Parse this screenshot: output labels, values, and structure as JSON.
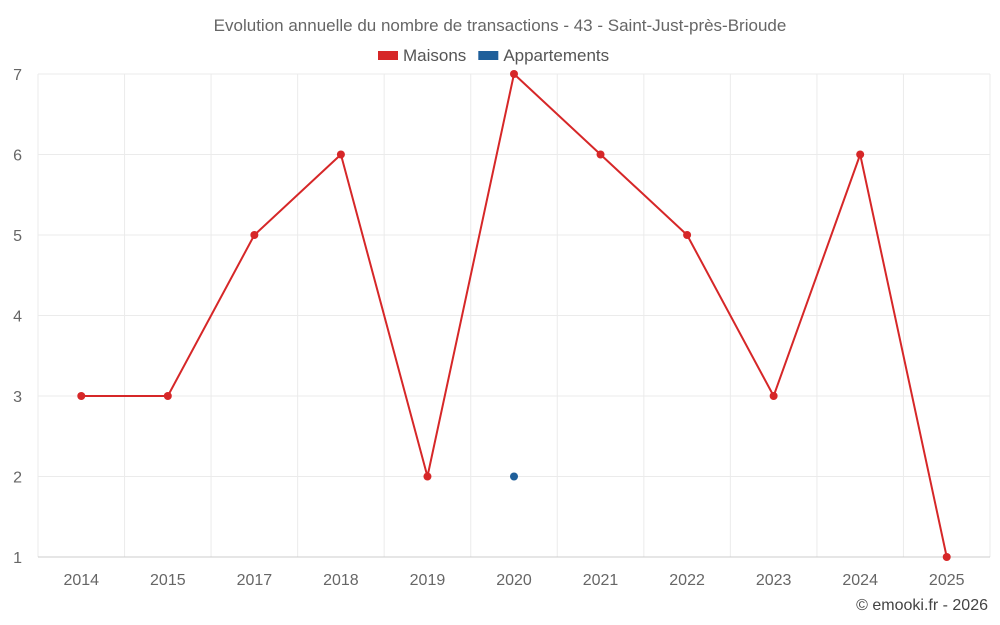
{
  "chart_data": {
    "type": "line",
    "title": "Evolution annuelle du nombre de transactions - 43 - Saint-Just-près-Brioude",
    "categories": [
      "2014",
      "2015",
      "2017",
      "2018",
      "2019",
      "2020",
      "2021",
      "2022",
      "2023",
      "2024",
      "2025"
    ],
    "series": [
      {
        "name": "Maisons",
        "color": "#d62728",
        "values": [
          3,
          3,
          5,
          6,
          2,
          7,
          6,
          5,
          3,
          6,
          1
        ]
      },
      {
        "name": "Appartements",
        "color": "#1f5f9a",
        "values": [
          null,
          null,
          null,
          null,
          null,
          2,
          null,
          null,
          null,
          null,
          null
        ]
      }
    ],
    "ylim": [
      1,
      7
    ],
    "yticks": [
      1,
      2,
      3,
      4,
      5,
      6,
      7
    ],
    "grid": true,
    "legend_position": "top-center"
  },
  "credit": "© emooki.fr - 2026"
}
